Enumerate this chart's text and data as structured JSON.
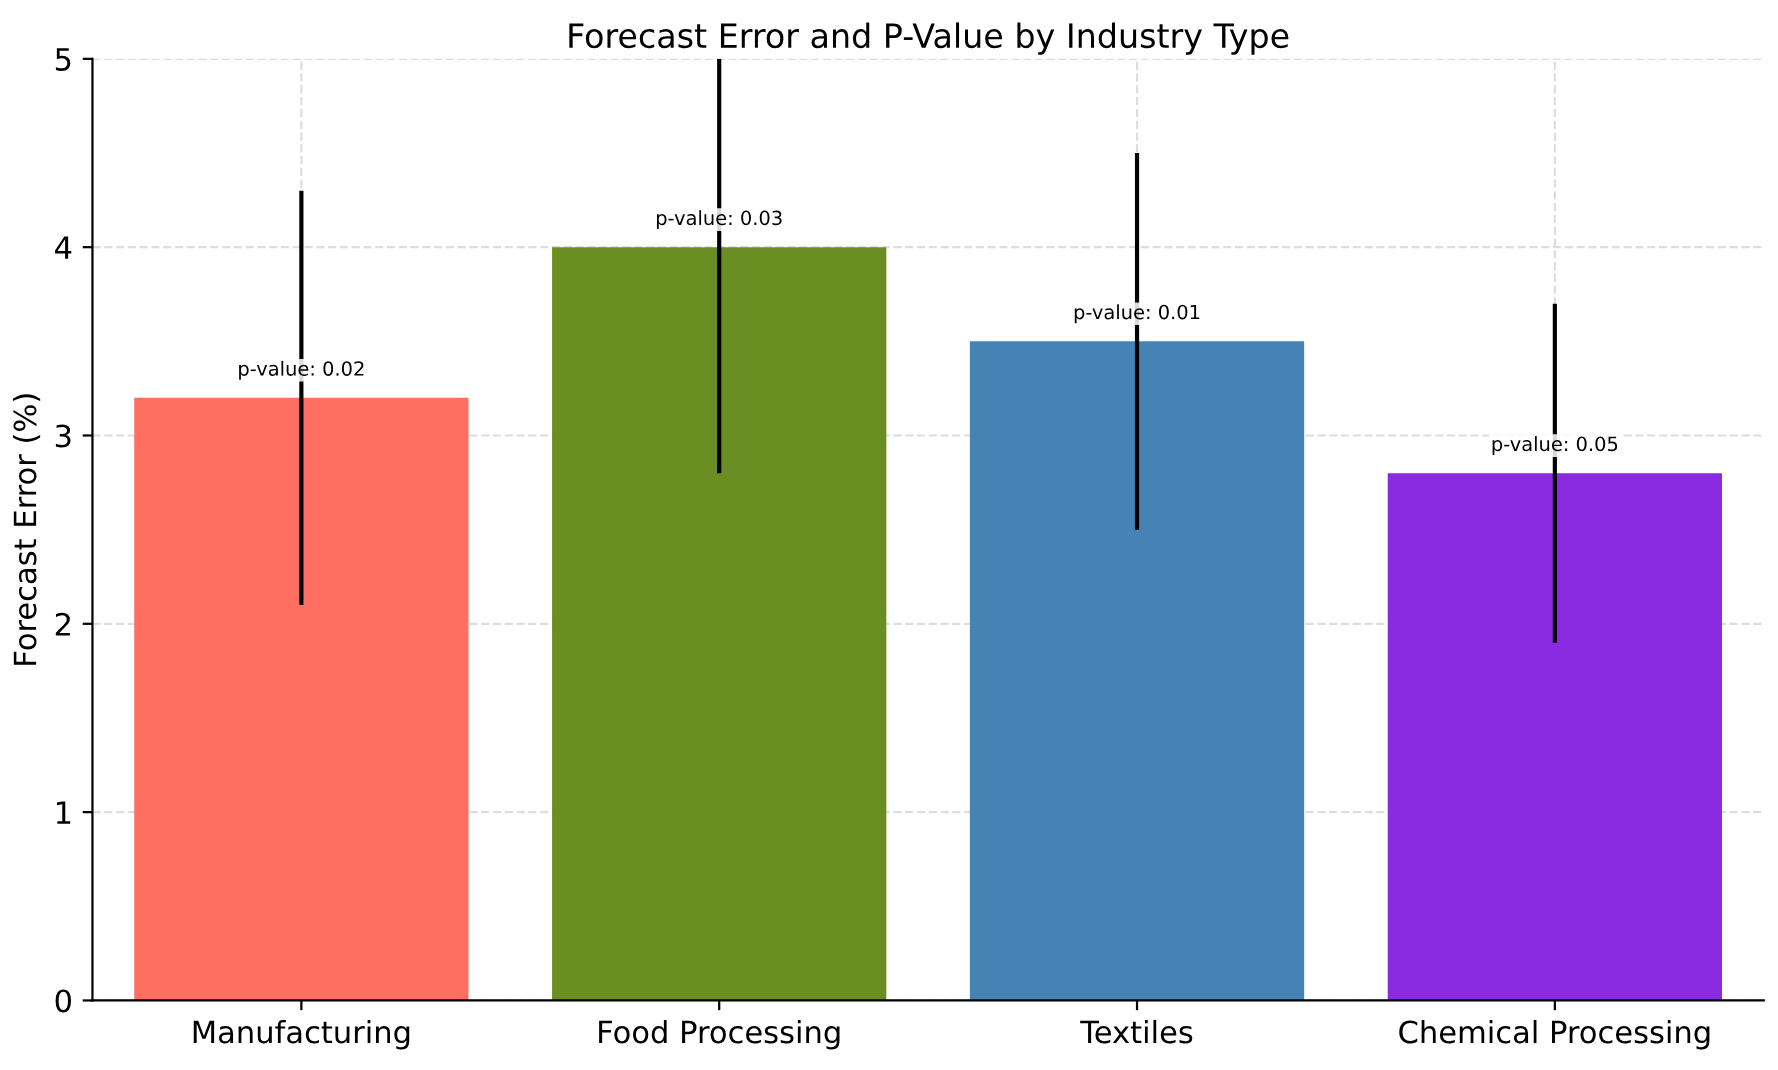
{
  "chart_data": {
    "type": "bar",
    "title": "Forecast Error and P-Value by Industry Type",
    "ylabel": "Forecast Error (%)",
    "categories": [
      "Manufacturing",
      "Food Processing",
      "Textiles",
      "Chemical Processing"
    ],
    "values": [
      3.2,
      4.0,
      3.5,
      2.8
    ],
    "colors": [
      "#ff6f61",
      "#6b8e23",
      "#4682b4",
      "#8a2be2"
    ],
    "errors": [
      1.1,
      [
        2.8,
        5
      ],
      1.0,
      0.9
    ],
    "ylim": [
      0,
      5
    ],
    "yticks": [
      0,
      1,
      2,
      3,
      4,
      5
    ],
    "grid": true,
    "annotations": [
      {
        "text": "p-value: 0.02",
        "x": "Manufacturing",
        "y": 3.2
      },
      {
        "text": "p-value: 0.03",
        "x": "Food Processing",
        "y": 4.0
      },
      {
        "text": "p-value: 0.01",
        "x": "Textiles",
        "y": 3.5
      },
      {
        "text": "p-value: 0.05",
        "x": "Chemical Processing",
        "y": 2.8
      }
    ]
  }
}
